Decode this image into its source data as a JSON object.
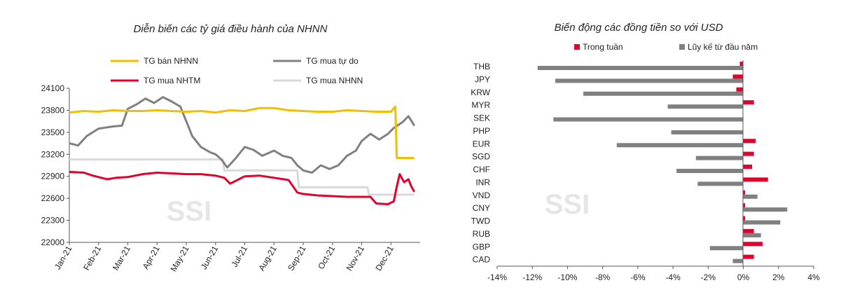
{
  "chart_data": [
    {
      "type": "line",
      "title": "Diễn biến các tỷ giá điều hành của NHNN",
      "watermark": "SSI",
      "categories": [
        "Jan-21",
        "Feb-21",
        "Mar-21",
        "Apr-21",
        "May-21",
        "Jun-21",
        "Jul-21",
        "Aug-21",
        "Sep-21",
        "Oct-21",
        "Nov-21",
        "Dec-21"
      ],
      "ylim": [
        22000,
        24100
      ],
      "yticks": [
        22000,
        22300,
        22600,
        22900,
        23200,
        23500,
        23800,
        24100
      ],
      "series": [
        {
          "name": "TG bán NHNN",
          "color": "#F2BE00",
          "values": [
            [
              0,
              23770
            ],
            [
              0.5,
              23790
            ],
            [
              1,
              23780
            ],
            [
              1.5,
              23800
            ],
            [
              2,
              23790
            ],
            [
              2.5,
              23790
            ],
            [
              3,
              23800
            ],
            [
              3.5,
              23790
            ],
            [
              4,
              23780
            ],
            [
              4.5,
              23790
            ],
            [
              5,
              23770
            ],
            [
              5.5,
              23800
            ],
            [
              6,
              23790
            ],
            [
              6.5,
              23830
            ],
            [
              7,
              23830
            ],
            [
              7.5,
              23800
            ],
            [
              8,
              23790
            ],
            [
              8.5,
              23780
            ],
            [
              9,
              23780
            ],
            [
              9.5,
              23800
            ],
            [
              10,
              23790
            ],
            [
              10.5,
              23780
            ],
            [
              11,
              23780
            ],
            [
              11.15,
              23850
            ],
            [
              11.2,
              23150
            ],
            [
              11.8,
              23150
            ]
          ]
        },
        {
          "name": "TG mua tự do",
          "color": "#808080",
          "values": [
            [
              0,
              23350
            ],
            [
              0.3,
              23320
            ],
            [
              0.6,
              23450
            ],
            [
              1,
              23550
            ],
            [
              1.5,
              23580
            ],
            [
              1.8,
              23590
            ],
            [
              2,
              23820
            ],
            [
              2.3,
              23880
            ],
            [
              2.6,
              23960
            ],
            [
              2.9,
              23900
            ],
            [
              3.2,
              23980
            ],
            [
              3.5,
              23920
            ],
            [
              3.8,
              23850
            ],
            [
              4,
              23650
            ],
            [
              4.2,
              23450
            ],
            [
              4.5,
              23300
            ],
            [
              4.8,
              23230
            ],
            [
              5,
              23200
            ],
            [
              5.2,
              23130
            ],
            [
              5.4,
              23020
            ],
            [
              5.7,
              23150
            ],
            [
              6,
              23300
            ],
            [
              6.3,
              23260
            ],
            [
              6.6,
              23180
            ],
            [
              7,
              23250
            ],
            [
              7.3,
              23180
            ],
            [
              7.6,
              23150
            ],
            [
              7.8,
              23050
            ],
            [
              8,
              22980
            ],
            [
              8.3,
              22950
            ],
            [
              8.6,
              23050
            ],
            [
              8.9,
              23000
            ],
            [
              9.2,
              23050
            ],
            [
              9.5,
              23180
            ],
            [
              9.8,
              23250
            ],
            [
              10,
              23380
            ],
            [
              10.3,
              23480
            ],
            [
              10.6,
              23400
            ],
            [
              10.9,
              23480
            ],
            [
              11.1,
              23560
            ],
            [
              11.4,
              23640
            ],
            [
              11.6,
              23720
            ],
            [
              11.8,
              23590
            ]
          ]
        },
        {
          "name": "TG mua NHTM",
          "color": "#E3002B",
          "values": [
            [
              0,
              22960
            ],
            [
              0.5,
              22950
            ],
            [
              0.8,
              22910
            ],
            [
              1,
              22890
            ],
            [
              1.3,
              22860
            ],
            [
              1.6,
              22880
            ],
            [
              2,
              22890
            ],
            [
              2.5,
              22930
            ],
            [
              3,
              22950
            ],
            [
              3.5,
              22940
            ],
            [
              4,
              22930
            ],
            [
              4.5,
              22930
            ],
            [
              5,
              22910
            ],
            [
              5.3,
              22880
            ],
            [
              5.5,
              22800
            ],
            [
              6,
              22900
            ],
            [
              6.5,
              22910
            ],
            [
              7,
              22880
            ],
            [
              7.5,
              22850
            ],
            [
              7.8,
              22680
            ],
            [
              8,
              22660
            ],
            [
              8.5,
              22640
            ],
            [
              9,
              22630
            ],
            [
              9.5,
              22620
            ],
            [
              10,
              22620
            ],
            [
              10.3,
              22620
            ],
            [
              10.5,
              22530
            ],
            [
              10.9,
              22520
            ],
            [
              11.1,
              22560
            ],
            [
              11.2,
              22760
            ],
            [
              11.3,
              22930
            ],
            [
              11.45,
              22820
            ],
            [
              11.6,
              22860
            ],
            [
              11.7,
              22760
            ],
            [
              11.8,
              22690
            ]
          ]
        },
        {
          "name": "TG mua NHNN",
          "color": "#D9D9D9",
          "values": [
            [
              0,
              23130
            ],
            [
              5.25,
              23130
            ],
            [
              5.3,
              22980
            ],
            [
              7.8,
              22980
            ],
            [
              7.85,
              22750
            ],
            [
              10.2,
              22750
            ],
            [
              10.25,
              22650
            ],
            [
              11.8,
              22650
            ]
          ]
        }
      ]
    },
    {
      "type": "bar",
      "title": "Biến động các đồng tiền so với USD",
      "watermark": "SSI",
      "categories": [
        "THB",
        "JPY",
        "KRW",
        "MYR",
        "SEK",
        "PHP",
        "EUR",
        "SGD",
        "CHF",
        "INR",
        "VND",
        "CNY",
        "TWD",
        "RUB",
        "GBP",
        "CAD"
      ],
      "xlim": [
        -14,
        4
      ],
      "xticks": [
        "-14%",
        "-12%",
        "-10%",
        "-8%",
        "-6%",
        "-4%",
        "-2%",
        "0%",
        "2%",
        "4%"
      ],
      "series": [
        {
          "name": "Trong tuần",
          "color": "#E3002B",
          "values": [
            -0.2,
            -0.6,
            -0.4,
            0.6,
            0.0,
            0.0,
            0.7,
            0.6,
            0.5,
            1.4,
            0.1,
            0.1,
            0.1,
            0.6,
            1.1,
            0.6
          ]
        },
        {
          "name": "Lũy kế từ đầu năm",
          "color": "#808080",
          "values": [
            -11.7,
            -10.7,
            -9.1,
            -4.3,
            -10.8,
            -4.1,
            -7.2,
            -2.7,
            -3.8,
            -2.6,
            0.8,
            2.5,
            2.1,
            1.0,
            -1.9,
            -0.6
          ]
        }
      ]
    }
  ]
}
